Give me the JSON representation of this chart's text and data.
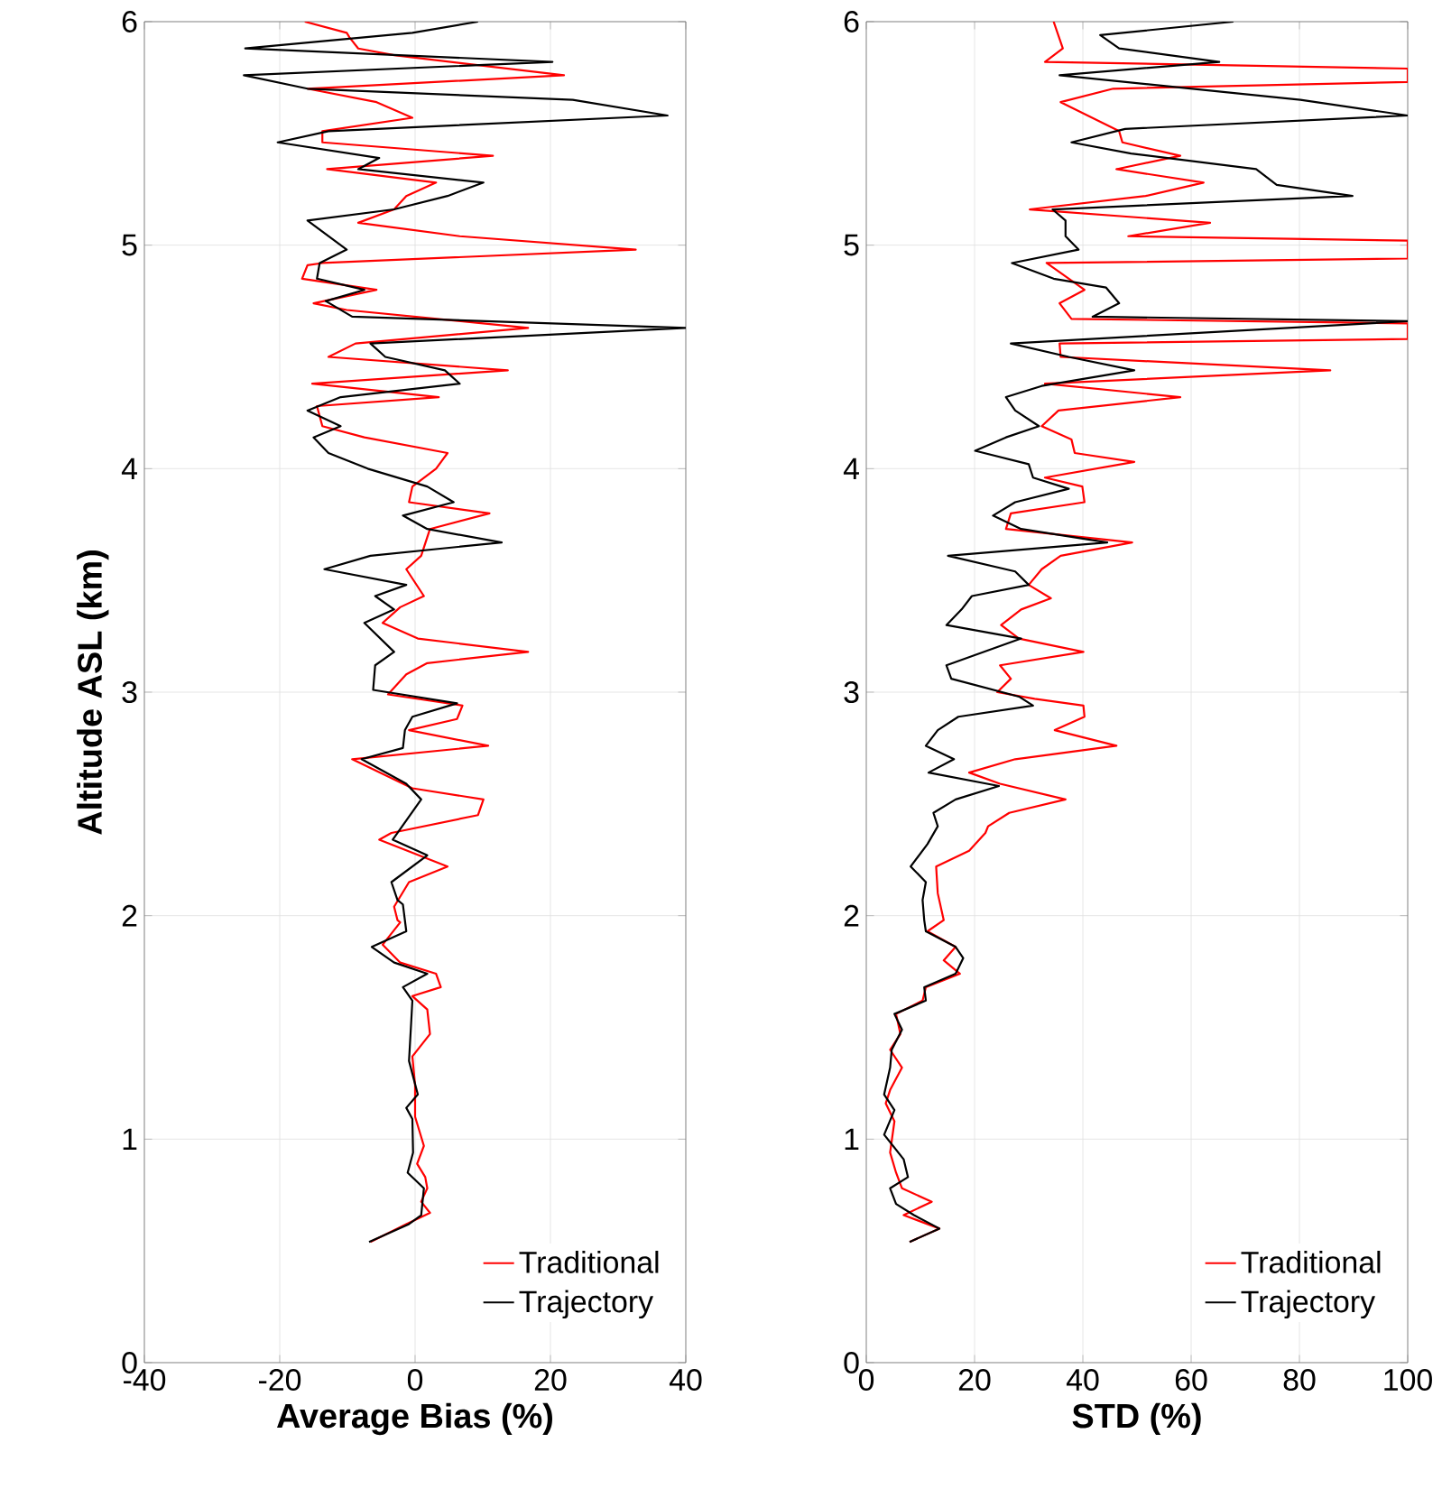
{
  "chart_data": [
    {
      "type": "line",
      "xlabel": "Average Bias (%)",
      "ylabel": "Altitude ASL (km)",
      "xlim": [
        -40,
        40
      ],
      "ylim": [
        0,
        6
      ],
      "xticks": [
        -40,
        -20,
        0,
        20,
        40
      ],
      "yticks": [
        0,
        1,
        2,
        3,
        4,
        5,
        6
      ],
      "grid": true,
      "legend": "bottom right",
      "series": [
        {
          "name": "Traditional",
          "color": "#ff0000",
          "x": [
            -16.3,
            -10.1,
            -9.7,
            -8.4,
            -3.1,
            22.0,
            -15.9,
            -5.7,
            -0.4,
            -13.7,
            -13.7,
            11.5,
            -13.0,
            3.1,
            -1.3,
            -3.1,
            -8.4,
            6.6,
            32.6,
            -13.7,
            -15.9,
            -16.7,
            -5.7,
            -15.0,
            -10.1,
            16.7,
            -8.8,
            -12.8,
            13.7,
            -15.2,
            3.5,
            -14.5,
            -13.7,
            -7.5,
            4.8,
            3.1,
            -0.4,
            -0.9,
            11.0,
            2.2,
            0.9,
            -1.3,
            1.3,
            -2.2,
            -4.8,
            0.4,
            16.7,
            1.8,
            -1.3,
            -4.0,
            7.0,
            6.2,
            -0.9,
            10.8,
            -9.3,
            -0.4,
            10.1,
            9.3,
            -3.5,
            -5.3,
            4.8,
            -0.9,
            -3.1,
            -2.6,
            -2.2,
            -4.8,
            -2.2,
            3.1,
            3.8,
            -0.4,
            1.8,
            2.2,
            -0.4,
            0,
            0,
            1.3,
            0.3,
            1.5,
            1.8,
            0.9,
            2.2,
            -1.3,
            -6.6
          ],
          "values": [
            6.0,
            5.95,
            5.93,
            5.88,
            5.85,
            5.76,
            5.7,
            5.64,
            5.57,
            5.51,
            5.46,
            5.4,
            5.34,
            5.28,
            5.22,
            5.16,
            5.1,
            5.04,
            4.98,
            4.92,
            4.91,
            4.85,
            4.8,
            4.74,
            4.71,
            4.63,
            4.56,
            4.5,
            4.44,
            4.38,
            4.32,
            4.28,
            4.19,
            4.14,
            4.07,
            4.0,
            3.92,
            3.85,
            3.8,
            3.73,
            3.61,
            3.55,
            3.43,
            3.38,
            3.31,
            3.24,
            3.18,
            3.13,
            3.08,
            2.99,
            2.94,
            2.88,
            2.83,
            2.76,
            2.7,
            2.57,
            2.52,
            2.45,
            2.37,
            2.34,
            2.22,
            2.15,
            2.04,
            1.98,
            1.97,
            1.87,
            1.79,
            1.74,
            1.68,
            1.64,
            1.58,
            1.47,
            1.37,
            1.24,
            1.1,
            0.97,
            0.89,
            0.83,
            0.78,
            0.72,
            0.67,
            0.62,
            0.54
          ]
        },
        {
          "name": "Trajectory",
          "color": "#000000",
          "x": [
            9.3,
            -0.4,
            -25.1,
            20.3,
            -25.3,
            -15.9,
            23.3,
            37.3,
            -12.8,
            -20.3,
            -5.3,
            -8.4,
            10.1,
            4.8,
            -3.1,
            -15.9,
            -10.1,
            -14.1,
            -14.5,
            -7.5,
            -13.2,
            -9.3,
            40,
            -6.6,
            -4.4,
            4.4,
            6.6,
            -11.0,
            -15.9,
            -11.0,
            -15.0,
            -12.8,
            -7.0,
            1.8,
            5.7,
            -1.8,
            1.8,
            12.8,
            -6.6,
            -13.4,
            -1.3,
            -5.9,
            -3.1,
            -7.5,
            -3.1,
            -5.9,
            -6.2,
            6.2,
            -0.4,
            -1.5,
            -1.8,
            -7.9,
            -1.3,
            0.9,
            -3.3,
            1.8,
            -3.5,
            -2.6,
            -1.8,
            -1.3,
            -6.4,
            -3.1,
            1.8,
            -1.8,
            -0.4,
            -0.6,
            -0.9,
            0.4,
            -1.3,
            -0.4,
            -0.3,
            -1.1,
            1.3,
            0.9,
            -0.9,
            -6.8
          ],
          "values": [
            6.0,
            5.95,
            5.88,
            5.82,
            5.76,
            5.7,
            5.65,
            5.58,
            5.51,
            5.46,
            5.39,
            5.34,
            5.28,
            5.22,
            5.16,
            5.11,
            4.98,
            4.92,
            4.85,
            4.8,
            4.75,
            4.68,
            4.63,
            4.56,
            4.5,
            4.44,
            4.38,
            4.32,
            4.26,
            4.19,
            4.14,
            4.07,
            4.0,
            3.92,
            3.85,
            3.79,
            3.73,
            3.67,
            3.61,
            3.55,
            3.48,
            3.43,
            3.37,
            3.31,
            3.18,
            3.12,
            3.01,
            2.95,
            2.89,
            2.83,
            2.75,
            2.7,
            2.59,
            2.52,
            2.34,
            2.27,
            2.15,
            2.07,
            2.05,
            1.93,
            1.86,
            1.79,
            1.74,
            1.68,
            1.62,
            1.51,
            1.35,
            1.2,
            1.14,
            1.09,
            0.94,
            0.85,
            0.78,
            0.66,
            0.62,
            0.54
          ]
        }
      ]
    },
    {
      "type": "line",
      "xlabel": "STD (%)",
      "xlim": [
        0,
        100
      ],
      "ylim": [
        0,
        6
      ],
      "xticks": [
        0,
        20,
        40,
        60,
        80,
        100
      ],
      "yticks": [
        0,
        1,
        2,
        3,
        4,
        5,
        6
      ],
      "grid": true,
      "legend": "bottom right",
      "series": [
        {
          "name": "Traditional",
          "color": "#ff0000",
          "x": [
            34.6,
            36.3,
            33.0,
            100,
            100,
            45.6,
            35.9,
            46.7,
            47.3,
            58.0,
            46.2,
            62.3,
            51.6,
            30.2,
            63.5,
            48.4,
            100,
            100,
            33.3,
            40.3,
            35.7,
            37.9,
            100,
            100,
            35.7,
            35.9,
            85.7,
            33.0,
            58.0,
            35.5,
            32.4,
            37.9,
            38.5,
            49.5,
            33.0,
            39.9,
            40.3,
            26.7,
            25.8,
            49.1,
            35.9,
            32.4,
            30.0,
            34.1,
            28.6,
            24.9,
            28.2,
            40.1,
            24.7,
            26.7,
            24.2,
            31.1,
            40.1,
            40.3,
            34.8,
            46.2,
            27.5,
            19.0,
            24.7,
            36.8,
            26.4,
            22.5,
            22.0,
            19.0,
            12.9,
            13.2,
            14.3,
            11.3,
            16.5,
            14.3,
            17.3,
            11.0,
            10.4,
            5.5,
            6.3,
            4.4,
            6.6,
            4.4,
            3.6,
            5.2,
            4.4,
            5.5,
            6.6,
            12.1,
            6.9,
            13.5,
            8.0
          ],
          "values": [
            6.0,
            5.88,
            5.82,
            5.79,
            5.73,
            5.7,
            5.64,
            5.51,
            5.46,
            5.4,
            5.34,
            5.28,
            5.22,
            5.16,
            5.1,
            5.04,
            5.02,
            4.94,
            4.92,
            4.8,
            4.74,
            4.67,
            4.65,
            4.58,
            4.56,
            4.5,
            4.44,
            4.38,
            4.32,
            4.26,
            4.19,
            4.13,
            4.07,
            4.03,
            3.96,
            3.92,
            3.85,
            3.8,
            3.73,
            3.67,
            3.61,
            3.55,
            3.48,
            3.42,
            3.37,
            3.3,
            3.24,
            3.18,
            3.12,
            3.06,
            3.0,
            2.97,
            2.94,
            2.89,
            2.83,
            2.76,
            2.7,
            2.64,
            2.59,
            2.52,
            2.46,
            2.4,
            2.37,
            2.29,
            2.22,
            2.1,
            1.98,
            1.93,
            1.86,
            1.8,
            1.74,
            1.68,
            1.62,
            1.56,
            1.47,
            1.4,
            1.32,
            1.22,
            1.16,
            1.08,
            0.94,
            0.85,
            0.78,
            0.72,
            0.66,
            0.6,
            0.54
          ]
        },
        {
          "name": "Trajectory",
          "color": "#000000",
          "x": [
            67.8,
            43.2,
            46.7,
            65.2,
            35.7,
            80.2,
            100,
            47.8,
            37.9,
            48.9,
            72.0,
            75.8,
            89.8,
            34.4,
            36.8,
            36.8,
            39.2,
            26.9,
            34.6,
            44.3,
            46.7,
            41.8,
            100,
            26.7,
            37.4,
            49.5,
            32.4,
            25.8,
            27.5,
            31.9,
            25.8,
            20.1,
            30.0,
            30.8,
            37.4,
            27.5,
            23.4,
            28.6,
            44.5,
            15.1,
            27.5,
            30.0,
            19.5,
            17.6,
            14.8,
            28.6,
            14.8,
            15.7,
            28.2,
            30.8,
            17.0,
            13.2,
            11.0,
            16.2,
            11.5,
            24.5,
            16.5,
            12.4,
            13.2,
            11.3,
            8.2,
            11.0,
            10.4,
            10.7,
            11.0,
            16.5,
            17.9,
            16.5,
            10.7,
            11.0,
            5.2,
            6.6,
            4.7,
            4.4,
            3.3,
            5.2,
            3.3,
            6.9,
            7.7,
            4.4,
            5.5,
            8.8,
            13.5,
            8.0
          ],
          "values": [
            6.0,
            5.94,
            5.88,
            5.82,
            5.76,
            5.65,
            5.58,
            5.52,
            5.46,
            5.41,
            5.34,
            5.27,
            5.22,
            5.16,
            5.11,
            5.04,
            4.98,
            4.92,
            4.85,
            4.81,
            4.74,
            4.68,
            4.66,
            4.56,
            4.5,
            4.44,
            4.37,
            4.32,
            4.26,
            4.19,
            4.14,
            4.08,
            4.02,
            3.96,
            3.91,
            3.85,
            3.79,
            3.73,
            3.67,
            3.61,
            3.54,
            3.48,
            3.43,
            3.37,
            3.3,
            3.24,
            3.12,
            3.06,
            2.98,
            2.94,
            2.89,
            2.83,
            2.76,
            2.7,
            2.64,
            2.58,
            2.52,
            2.46,
            2.4,
            2.32,
            2.22,
            2.15,
            2.07,
            1.98,
            1.93,
            1.86,
            1.81,
            1.74,
            1.68,
            1.62,
            1.56,
            1.49,
            1.4,
            1.32,
            1.2,
            1.13,
            1.02,
            0.91,
            0.83,
            0.78,
            0.71,
            0.66,
            0.6,
            0.54
          ]
        }
      ]
    }
  ]
}
